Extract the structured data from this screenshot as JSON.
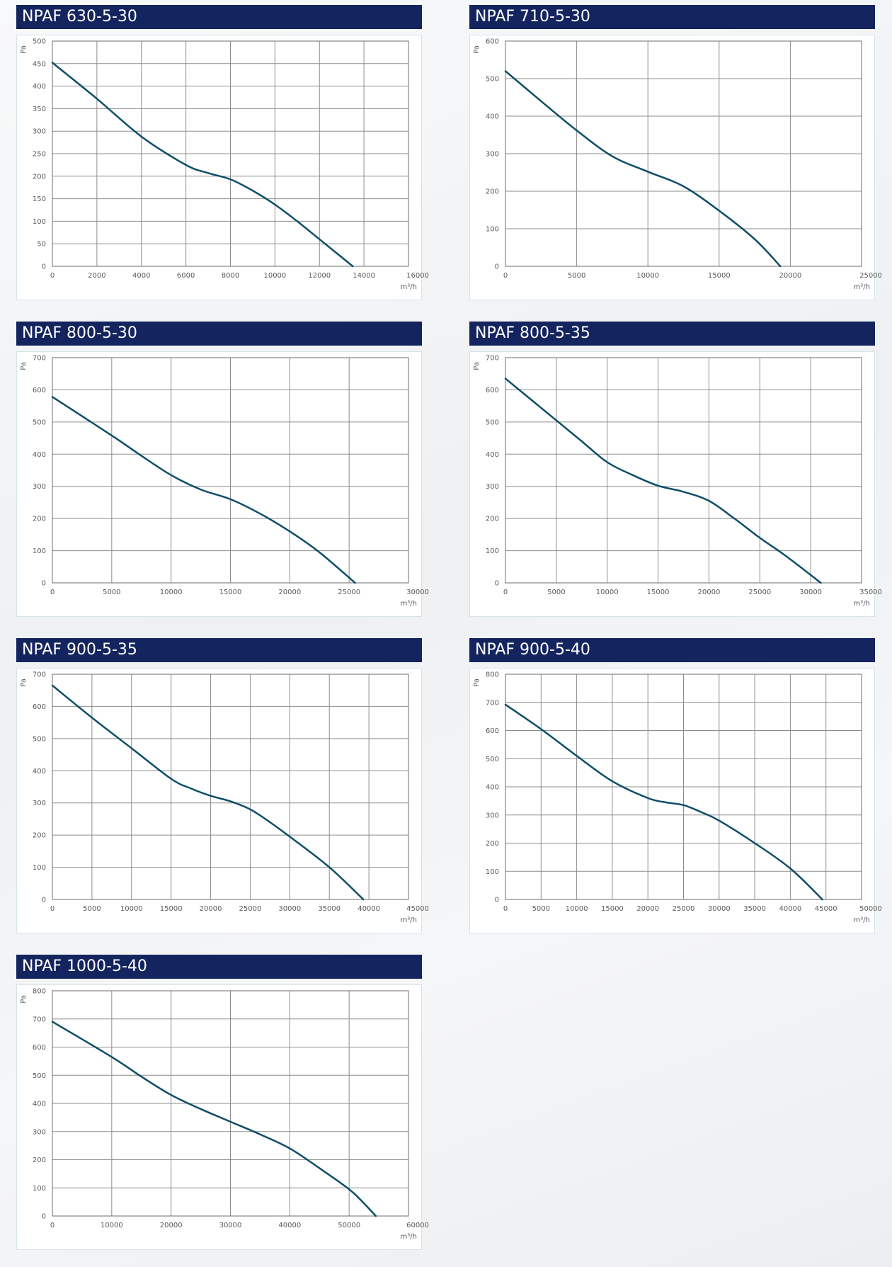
{
  "chart_data": [
    {
      "type": "line",
      "title": "NPAF 630-5-30",
      "xlabel": "m³/h",
      "ylabel": "Pa",
      "xlim": [
        0,
        16000
      ],
      "ylim": [
        0,
        500
      ],
      "xticks": [
        0,
        2000,
        4000,
        6000,
        8000,
        10000,
        12000,
        14000,
        16000
      ],
      "yticks": [
        0,
        50,
        100,
        150,
        200,
        250,
        300,
        350,
        400,
        450,
        500
      ],
      "grid": true,
      "series": [
        {
          "x": [
            0,
            2000,
            4000,
            6000,
            7000,
            8000,
            9000,
            10000,
            11000,
            12000,
            13500
          ],
          "y": [
            452,
            372,
            288,
            225,
            207,
            193,
            168,
            137,
            100,
            60,
            0
          ]
        }
      ]
    },
    {
      "type": "line",
      "title": "NPAF 710-5-30",
      "xlabel": "m³/h",
      "ylabel": "Pa",
      "xlim": [
        0,
        25000
      ],
      "ylim": [
        0,
        600
      ],
      "xticks": [
        0,
        5000,
        10000,
        15000,
        20000,
        25000
      ],
      "yticks": [
        0,
        100,
        200,
        300,
        400,
        500,
        600
      ],
      "grid": true,
      "series": [
        {
          "x": [
            0,
            2500,
            5000,
            7500,
            10000,
            12500,
            15000,
            17500,
            19300
          ],
          "y": [
            520,
            440,
            362,
            293,
            252,
            213,
            148,
            72,
            0
          ]
        }
      ]
    },
    {
      "type": "line",
      "title": "NPAF 800-5-30",
      "xlabel": "m³/h",
      "ylabel": "Pa",
      "xlim": [
        0,
        30000
      ],
      "ylim": [
        0,
        700
      ],
      "xticks": [
        0,
        5000,
        10000,
        15000,
        20000,
        25000,
        30000
      ],
      "yticks": [
        0,
        100,
        200,
        300,
        400,
        500,
        600,
        700
      ],
      "grid": true,
      "series": [
        {
          "x": [
            0,
            5000,
            7500,
            10000,
            12500,
            15000,
            17500,
            20000,
            22500,
            25500
          ],
          "y": [
            578,
            458,
            395,
            335,
            290,
            260,
            215,
            160,
            95,
            0
          ]
        }
      ]
    },
    {
      "type": "line",
      "title": "NPAF 800-5-35",
      "xlabel": "m³/h",
      "ylabel": "Pa",
      "xlim": [
        0,
        35000
      ],
      "ylim": [
        0,
        700
      ],
      "xticks": [
        0,
        5000,
        10000,
        15000,
        20000,
        25000,
        30000,
        35000
      ],
      "yticks": [
        0,
        100,
        200,
        300,
        400,
        500,
        600,
        700
      ],
      "grid": true,
      "series": [
        {
          "x": [
            0,
            5000,
            7500,
            10000,
            12500,
            15000,
            17500,
            20000,
            22500,
            25000,
            27500,
            31000
          ],
          "y": [
            635,
            505,
            440,
            375,
            335,
            302,
            283,
            255,
            200,
            140,
            85,
            0
          ]
        }
      ]
    },
    {
      "type": "line",
      "title": "NPAF 900-5-35",
      "xlabel": "m³/h",
      "ylabel": "Pa",
      "xlim": [
        0,
        45000
      ],
      "ylim": [
        0,
        700
      ],
      "xticks": [
        0,
        5000,
        10000,
        15000,
        20000,
        25000,
        30000,
        35000,
        40000,
        45000
      ],
      "yticks": [
        0,
        100,
        200,
        300,
        400,
        500,
        600,
        700
      ],
      "grid": true,
      "series": [
        {
          "x": [
            0,
            5000,
            10000,
            15000,
            17500,
            20000,
            22500,
            25000,
            27500,
            30000,
            35000,
            39300
          ],
          "y": [
            665,
            565,
            470,
            375,
            345,
            322,
            305,
            280,
            240,
            195,
            100,
            0
          ]
        }
      ]
    },
    {
      "type": "line",
      "title": "NPAF 900-5-40",
      "xlabel": "m³/h",
      "ylabel": "Pa",
      "xlim": [
        0,
        50000
      ],
      "ylim": [
        0,
        800
      ],
      "xticks": [
        0,
        5000,
        10000,
        15000,
        20000,
        25000,
        30000,
        35000,
        40000,
        45000,
        50000
      ],
      "yticks": [
        0,
        100,
        200,
        300,
        400,
        500,
        600,
        700,
        800
      ],
      "grid": true,
      "series": [
        {
          "x": [
            0,
            5000,
            10000,
            15000,
            20000,
            22500,
            25000,
            27500,
            30000,
            35000,
            40000,
            44500
          ],
          "y": [
            692,
            605,
            510,
            420,
            360,
            345,
            335,
            310,
            280,
            200,
            110,
            0
          ]
        }
      ]
    },
    {
      "type": "line",
      "title": "NPAF 1000-5-40",
      "xlabel": "m³/h",
      "ylabel": "Pa",
      "xlim": [
        0,
        60000
      ],
      "ylim": [
        0,
        800
      ],
      "xticks": [
        0,
        10000,
        20000,
        30000,
        40000,
        50000,
        60000
      ],
      "yticks": [
        0,
        100,
        200,
        300,
        400,
        500,
        600,
        700,
        800
      ],
      "grid": true,
      "series": [
        {
          "x": [
            0,
            10000,
            15000,
            20000,
            25000,
            30000,
            35000,
            40000,
            45000,
            50000,
            52500,
            54500
          ],
          "y": [
            690,
            565,
            495,
            430,
            380,
            335,
            290,
            240,
            170,
            95,
            45,
            0
          ]
        }
      ]
    }
  ]
}
